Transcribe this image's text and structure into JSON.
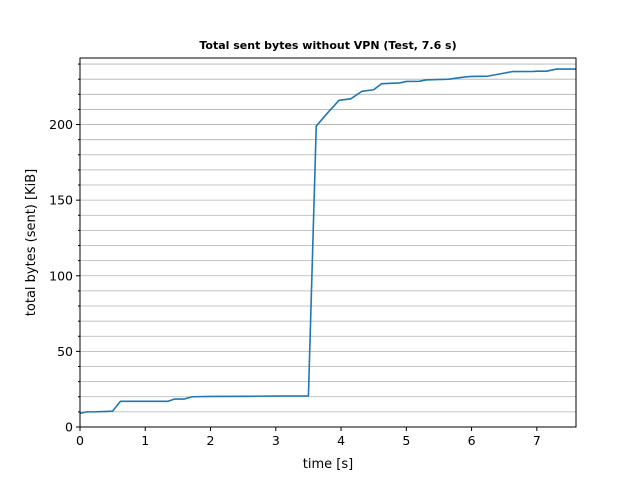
{
  "chart_data": {
    "type": "line",
    "title": "Total sent bytes without VPN (Test, 7.6 s)",
    "xlabel": "time [s]",
    "ylabel": "total bytes (sent) [KiB]",
    "xlim": [
      0,
      7.6
    ],
    "ylim": [
      0,
      244
    ],
    "x_ticks": [
      0,
      1,
      2,
      3,
      4,
      5,
      6,
      7
    ],
    "x_tick_labels": [
      "0",
      "1",
      "2",
      "3",
      "4",
      "5",
      "6",
      "7"
    ],
    "y_ticks": [
      0,
      50,
      100,
      150,
      200
    ],
    "y_tick_labels": [
      "0",
      "50",
      "100",
      "150",
      "200"
    ],
    "y_minor_ticks": [
      10,
      20,
      30,
      40,
      60,
      70,
      80,
      90,
      110,
      120,
      130,
      140,
      160,
      170,
      180,
      190,
      210,
      220,
      230,
      240
    ],
    "grid": "horizontal major and minor",
    "color": "#1f77b4",
    "series": [
      {
        "x": [
          0,
          0.1,
          0.2,
          0.35,
          0.5,
          0.62,
          0.75,
          1.0,
          1.2,
          1.35,
          1.45,
          1.6,
          1.72,
          2.0,
          2.6,
          3.0,
          3.5,
          3.62,
          3.8,
          3.97,
          4.15,
          4.32,
          4.5,
          4.62,
          4.9,
          5.0,
          5.2,
          5.3,
          5.65,
          5.9,
          6.0,
          6.25,
          6.5,
          6.62,
          6.95,
          7.0,
          7.15,
          7.3,
          7.6
        ],
        "y": [
          9,
          10,
          10,
          10.2,
          10.5,
          17,
          17,
          17,
          17,
          17,
          18.5,
          18.5,
          20,
          20.2,
          20.3,
          20.5,
          20.5,
          199,
          208,
          216,
          217,
          222,
          223,
          227,
          227.5,
          228.5,
          228.6,
          229.5,
          230,
          231.5,
          231.8,
          232,
          234,
          235,
          235.1,
          235.3,
          235.3,
          236.7,
          236.7
        ]
      }
    ]
  }
}
